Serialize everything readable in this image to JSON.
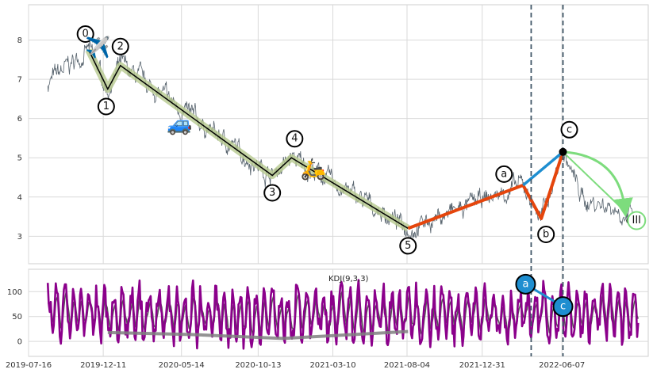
{
  "chart_data": {
    "type": "line",
    "panels": [
      {
        "name": "price",
        "ylim": [
          2.3,
          8.9
        ],
        "yticks": [
          3,
          4,
          5,
          6,
          7,
          8
        ],
        "grid": true,
        "wave_points": [
          {
            "label": "0",
            "date": "2019-11-12",
            "value": 7.75
          },
          {
            "label": "1",
            "date": "2019-12-20",
            "value": 6.75
          },
          {
            "label": "2",
            "date": "2020-01-14",
            "value": 7.35
          },
          {
            "label": "3",
            "date": "2020-11-10",
            "value": 4.55
          },
          {
            "label": "4",
            "date": "2020-12-18",
            "value": 5.0
          },
          {
            "label": "5",
            "date": "2021-08-06",
            "value": 3.2
          },
          {
            "label": "a",
            "date": "2022-03-22",
            "value": 4.3
          },
          {
            "label": "b",
            "date": "2022-04-27",
            "value": 3.45
          },
          {
            "label": "c",
            "date": "2022-06-09",
            "value": 5.15
          }
        ],
        "projection": {
          "label": "III",
          "date": "2022-10-25",
          "value": 3.4
        },
        "vertical_lines": [
          "2022-04-07",
          "2022-06-09"
        ],
        "emoji_markers": [
          {
            "symbol": "✈️",
            "date": "2019-11-30",
            "value": 7.8
          },
          {
            "symbol": "🚙",
            "date": "2020-05-10",
            "value": 5.85
          },
          {
            "symbol": "🛵",
            "date": "2021-01-30",
            "value": 4.7
          }
        ]
      },
      {
        "name": "kdj",
        "title": "KDJ(9,3,3)",
        "ylim": [
          -30,
          145
        ],
        "yticks": [
          0,
          50,
          100
        ],
        "grid": true,
        "points": [
          {
            "label": "a",
            "date": "2022-03-27",
            "value": 115
          },
          {
            "label": "c",
            "date": "2022-06-09",
            "value": 70
          }
        ]
      }
    ],
    "x_range": [
      "2019-07-16",
      "2022-11-25"
    ],
    "x_ticks": [
      "2019-07-16",
      "2019-12-11",
      "2020-05-14",
      "2020-10-13",
      "2021-03-10",
      "2021-08-04",
      "2021-12-31",
      "2022-06-07"
    ],
    "colors": {
      "price": "#5a6670",
      "impulse": "#000000",
      "channel": "#b7c98f",
      "correction_bc": "#1e8ed0",
      "correction_ab": "#e5450c",
      "arrow": "#7ddc7d",
      "vline": "#3f5566",
      "kdj_k": "#8b008b",
      "kdj_d": "#555555",
      "kdj_trend": "#808080"
    }
  }
}
